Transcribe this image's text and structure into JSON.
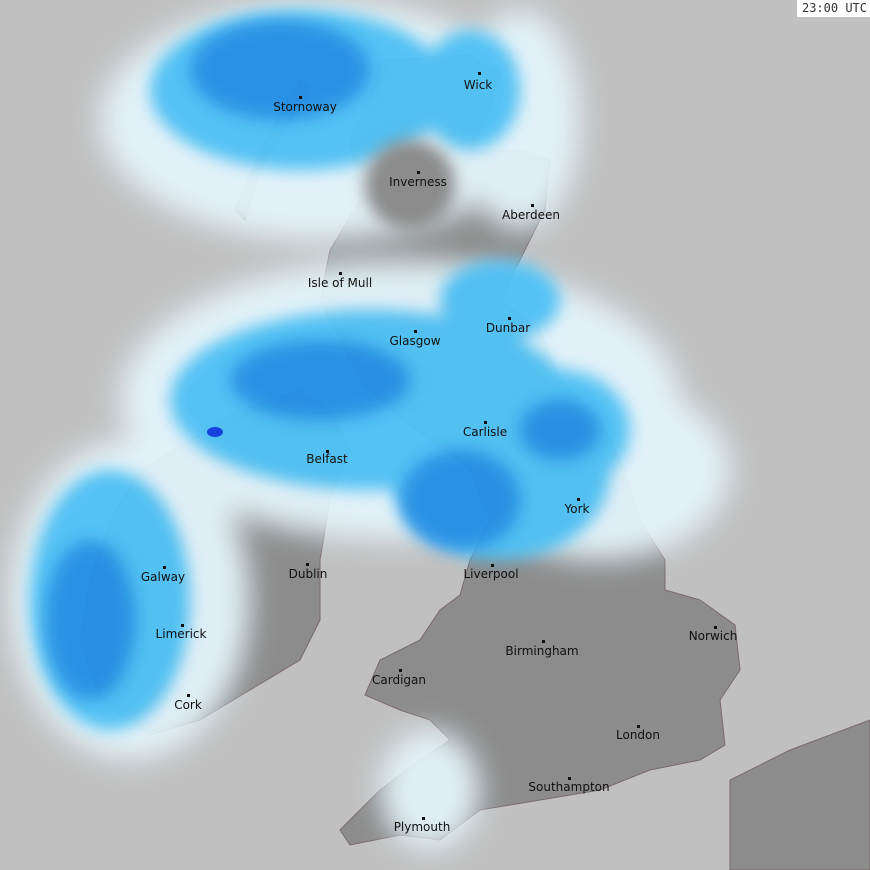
{
  "timestamp": "23:00 UTC",
  "colors": {
    "sea": "#c0c0c0",
    "land": "#8c8c8c",
    "light_rain": "#e4f4fb",
    "moderate_rain": "#4fc3f7",
    "heavy_rain": "#1e88e5",
    "very_heavy_rain": "#1040e0"
  },
  "cities": [
    {
      "name": "Stornoway"
    },
    {
      "name": "Wick"
    },
    {
      "name": "Inverness"
    },
    {
      "name": "Aberdeen"
    },
    {
      "name": "Isle of Mull"
    },
    {
      "name": "Dunbar"
    },
    {
      "name": "Glasgow"
    },
    {
      "name": "Carlisle"
    },
    {
      "name": "Belfast"
    },
    {
      "name": "York"
    },
    {
      "name": "Galway"
    },
    {
      "name": "Dublin"
    },
    {
      "name": "Liverpool"
    },
    {
      "name": "Limerick"
    },
    {
      "name": "Norwich"
    },
    {
      "name": "Birmingham"
    },
    {
      "name": "Cardigan"
    },
    {
      "name": "Cork"
    },
    {
      "name": "London"
    },
    {
      "name": "Southampton"
    },
    {
      "name": "Plymouth"
    }
  ]
}
